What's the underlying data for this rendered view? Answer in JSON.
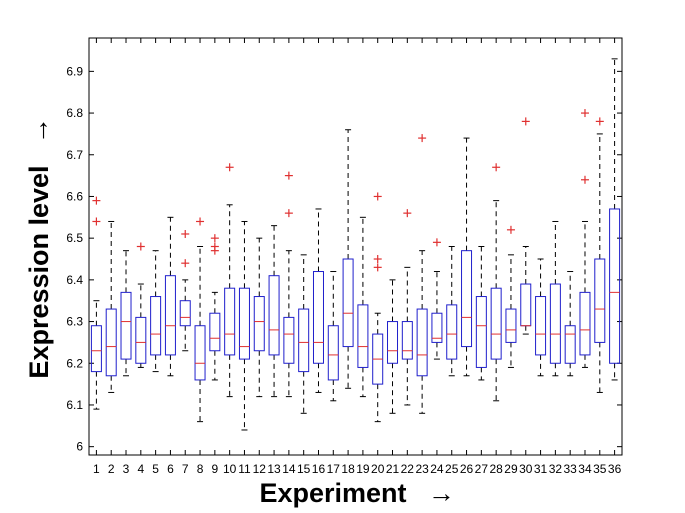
{
  "chart_data": {
    "type": "box",
    "title": "",
    "xlabel": "Experiment",
    "ylabel": "Expression level",
    "arrow_glyph": "→",
    "ylim": [
      5.98,
      6.98
    ],
    "yticks": [
      "6",
      "6.1",
      "6.2",
      "6.3",
      "6.4",
      "6.5",
      "6.6",
      "6.7",
      "6.8",
      "6.9"
    ],
    "grid": false,
    "legend": "none",
    "colors": {
      "box": "#1f1fcc",
      "median": "#e03030",
      "outlier": "#e03030",
      "whisker": "#000000"
    },
    "categories": [
      "1",
      "2",
      "3",
      "4",
      "5",
      "6",
      "7",
      "8",
      "9",
      "10",
      "11",
      "12",
      "13",
      "14",
      "15",
      "16",
      "17",
      "18",
      "19",
      "20",
      "21",
      "22",
      "23",
      "24",
      "25",
      "26",
      "27",
      "28",
      "29",
      "30",
      "31",
      "32",
      "33",
      "34",
      "35",
      "36"
    ],
    "boxes": [
      {
        "q1": 6.18,
        "median": 6.23,
        "q3": 6.29,
        "low": 6.09,
        "high": 6.35,
        "outliers": [
          6.54,
          6.59
        ]
      },
      {
        "q1": 6.17,
        "median": 6.24,
        "q3": 6.33,
        "low": 6.13,
        "high": 6.54,
        "outliers": []
      },
      {
        "q1": 6.21,
        "median": 6.3,
        "q3": 6.37,
        "low": 6.17,
        "high": 6.47,
        "outliers": []
      },
      {
        "q1": 6.2,
        "median": 6.25,
        "q3": 6.31,
        "low": 6.19,
        "high": 6.39,
        "outliers": [
          6.48
        ]
      },
      {
        "q1": 6.22,
        "median": 6.27,
        "q3": 6.36,
        "low": 6.18,
        "high": 6.47,
        "outliers": []
      },
      {
        "q1": 6.22,
        "median": 6.29,
        "q3": 6.41,
        "low": 6.17,
        "high": 6.55,
        "outliers": []
      },
      {
        "q1": 6.29,
        "median": 6.31,
        "q3": 6.35,
        "low": 6.23,
        "high": 6.4,
        "outliers": [
          6.44,
          6.51
        ]
      },
      {
        "q1": 6.16,
        "median": 6.2,
        "q3": 6.29,
        "low": 6.06,
        "high": 6.48,
        "outliers": [
          6.54
        ]
      },
      {
        "q1": 6.23,
        "median": 6.26,
        "q3": 6.32,
        "low": 6.16,
        "high": 6.37,
        "outliers": [
          6.47,
          6.48,
          6.5
        ]
      },
      {
        "q1": 6.22,
        "median": 6.27,
        "q3": 6.38,
        "low": 6.12,
        "high": 6.58,
        "outliers": [
          6.67
        ]
      },
      {
        "q1": 6.21,
        "median": 6.24,
        "q3": 6.38,
        "low": 6.04,
        "high": 6.54,
        "outliers": []
      },
      {
        "q1": 6.23,
        "median": 6.3,
        "q3": 6.36,
        "low": 6.12,
        "high": 6.5,
        "outliers": []
      },
      {
        "q1": 6.22,
        "median": 6.28,
        "q3": 6.41,
        "low": 6.12,
        "high": 6.53,
        "outliers": []
      },
      {
        "q1": 6.2,
        "median": 6.27,
        "q3": 6.31,
        "low": 6.12,
        "high": 6.47,
        "outliers": [
          6.56,
          6.65
        ]
      },
      {
        "q1": 6.18,
        "median": 6.25,
        "q3": 6.33,
        "low": 6.08,
        "high": 6.46,
        "outliers": []
      },
      {
        "q1": 6.2,
        "median": 6.25,
        "q3": 6.42,
        "low": 6.13,
        "high": 6.57,
        "outliers": []
      },
      {
        "q1": 6.16,
        "median": 6.22,
        "q3": 6.29,
        "low": 6.11,
        "high": 6.42,
        "outliers": []
      },
      {
        "q1": 6.24,
        "median": 6.32,
        "q3": 6.45,
        "low": 6.14,
        "high": 6.76,
        "outliers": []
      },
      {
        "q1": 6.19,
        "median": 6.24,
        "q3": 6.34,
        "low": 6.12,
        "high": 6.55,
        "outliers": []
      },
      {
        "q1": 6.15,
        "median": 6.21,
        "q3": 6.27,
        "low": 6.06,
        "high": 6.32,
        "outliers": [
          6.43,
          6.45,
          6.6
        ]
      },
      {
        "q1": 6.2,
        "median": 6.23,
        "q3": 6.3,
        "low": 6.08,
        "high": 6.4,
        "outliers": []
      },
      {
        "q1": 6.21,
        "median": 6.23,
        "q3": 6.3,
        "low": 6.1,
        "high": 6.43,
        "outliers": [
          6.56
        ]
      },
      {
        "q1": 6.17,
        "median": 6.22,
        "q3": 6.33,
        "low": 6.08,
        "high": 6.47,
        "outliers": [
          6.74
        ]
      },
      {
        "q1": 6.25,
        "median": 6.26,
        "q3": 6.32,
        "low": 6.21,
        "high": 6.42,
        "outliers": [
          6.49
        ]
      },
      {
        "q1": 6.21,
        "median": 6.27,
        "q3": 6.34,
        "low": 6.17,
        "high": 6.48,
        "outliers": []
      },
      {
        "q1": 6.24,
        "median": 6.31,
        "q3": 6.47,
        "low": 6.17,
        "high": 6.74,
        "outliers": []
      },
      {
        "q1": 6.19,
        "median": 6.29,
        "q3": 6.36,
        "low": 6.16,
        "high": 6.48,
        "outliers": []
      },
      {
        "q1": 6.21,
        "median": 6.27,
        "q3": 6.38,
        "low": 6.11,
        "high": 6.59,
        "outliers": [
          6.67
        ]
      },
      {
        "q1": 6.25,
        "median": 6.28,
        "q3": 6.33,
        "low": 6.19,
        "high": 6.46,
        "outliers": [
          6.52
        ]
      },
      {
        "q1": 6.29,
        "median": 6.29,
        "q3": 6.39,
        "low": 6.27,
        "high": 6.48,
        "outliers": [
          6.78
        ]
      },
      {
        "q1": 6.22,
        "median": 6.27,
        "q3": 6.36,
        "low": 6.17,
        "high": 6.45,
        "outliers": []
      },
      {
        "q1": 6.2,
        "median": 6.27,
        "q3": 6.39,
        "low": 6.17,
        "high": 6.54,
        "outliers": []
      },
      {
        "q1": 6.2,
        "median": 6.27,
        "q3": 6.29,
        "low": 6.17,
        "high": 6.42,
        "outliers": []
      },
      {
        "q1": 6.22,
        "median": 6.28,
        "q3": 6.37,
        "low": 6.19,
        "high": 6.54,
        "outliers": [
          6.64,
          6.8
        ]
      },
      {
        "q1": 6.25,
        "median": 6.33,
        "q3": 6.45,
        "low": 6.13,
        "high": 6.75,
        "outliers": [
          6.78
        ]
      },
      {
        "q1": 6.2,
        "median": 6.37,
        "q3": 6.57,
        "low": 6.16,
        "high": 6.93,
        "outliers": []
      }
    ]
  }
}
